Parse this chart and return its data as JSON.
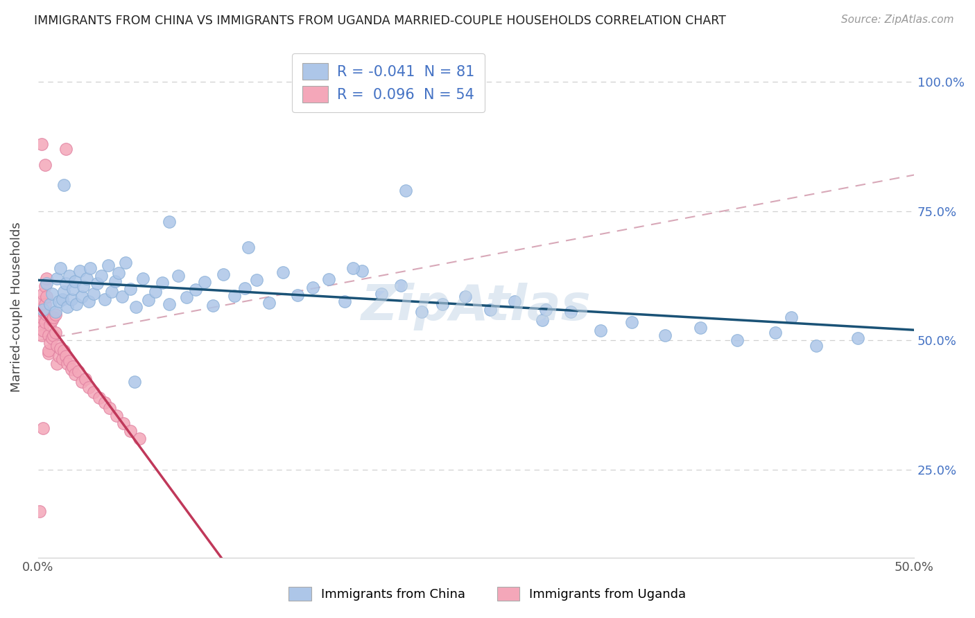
{
  "title": "IMMIGRANTS FROM CHINA VS IMMIGRANTS FROM UGANDA MARRIED-COUPLE HOUSEHOLDS CORRELATION CHART",
  "source": "Source: ZipAtlas.com",
  "ylabel": "Married-couple Households",
  "x_min": 0.0,
  "x_max": 0.5,
  "y_min": 0.08,
  "y_max": 1.05,
  "china_R": -0.041,
  "china_N": 81,
  "uganda_R": 0.096,
  "uganda_N": 54,
  "china_color": "#adc6e8",
  "china_edge_color": "#8ab0d8",
  "uganda_color": "#f4a7b9",
  "uganda_edge_color": "#e080a0",
  "china_line_color": "#1a5276",
  "uganda_line_color": "#c0385a",
  "ref_line_color": "#d8a8b8",
  "grid_color": "#d0d0d0",
  "right_axis_color": "#4472c4",
  "legend_text_color": "#222222",
  "legend_value_color": "#4472c4",
  "legend_labels": [
    "Immigrants from China",
    "Immigrants from Uganda"
  ],
  "watermark": "ZipAtlas",
  "y_ticks_right": [
    0.25,
    0.5,
    0.75,
    1.0
  ],
  "y_tick_labels_right": [
    "25.0%",
    "50.0%",
    "75.0%",
    "100.0%"
  ],
  "x_ticks": [
    0.0,
    0.1,
    0.2,
    0.3,
    0.4,
    0.5
  ],
  "x_tick_labels": [
    "0.0%",
    "",
    "",
    "",
    "",
    "50.0%"
  ],
  "china_x": [
    0.003,
    0.005,
    0.007,
    0.008,
    0.01,
    0.011,
    0.012,
    0.013,
    0.014,
    0.015,
    0.016,
    0.017,
    0.018,
    0.019,
    0.02,
    0.021,
    0.022,
    0.024,
    0.025,
    0.026,
    0.028,
    0.029,
    0.03,
    0.032,
    0.034,
    0.036,
    0.038,
    0.04,
    0.042,
    0.044,
    0.046,
    0.048,
    0.05,
    0.053,
    0.056,
    0.06,
    0.063,
    0.067,
    0.071,
    0.075,
    0.08,
    0.085,
    0.09,
    0.095,
    0.1,
    0.106,
    0.112,
    0.118,
    0.125,
    0.132,
    0.14,
    0.148,
    0.157,
    0.166,
    0.175,
    0.185,
    0.196,
    0.207,
    0.219,
    0.231,
    0.244,
    0.258,
    0.272,
    0.288,
    0.304,
    0.321,
    0.339,
    0.358,
    0.378,
    0.399,
    0.421,
    0.444,
    0.468,
    0.21,
    0.055,
    0.015,
    0.43,
    0.12,
    0.29,
    0.075,
    0.18
  ],
  "china_y": [
    0.56,
    0.61,
    0.57,
    0.59,
    0.555,
    0.62,
    0.575,
    0.64,
    0.58,
    0.595,
    0.61,
    0.565,
    0.625,
    0.58,
    0.6,
    0.615,
    0.57,
    0.635,
    0.585,
    0.605,
    0.62,
    0.575,
    0.64,
    0.59,
    0.61,
    0.625,
    0.58,
    0.645,
    0.595,
    0.615,
    0.63,
    0.585,
    0.65,
    0.6,
    0.565,
    0.62,
    0.578,
    0.595,
    0.612,
    0.57,
    0.625,
    0.583,
    0.598,
    0.613,
    0.568,
    0.628,
    0.586,
    0.601,
    0.617,
    0.573,
    0.632,
    0.588,
    0.603,
    0.619,
    0.575,
    0.634,
    0.591,
    0.606,
    0.555,
    0.57,
    0.585,
    0.56,
    0.575,
    0.54,
    0.555,
    0.52,
    0.535,
    0.51,
    0.525,
    0.5,
    0.515,
    0.49,
    0.505,
    0.79,
    0.42,
    0.8,
    0.545,
    0.68,
    0.56,
    0.73,
    0.64
  ],
  "uganda_x": [
    0.001,
    0.001,
    0.002,
    0.002,
    0.002,
    0.003,
    0.003,
    0.003,
    0.004,
    0.004,
    0.004,
    0.005,
    0.005,
    0.005,
    0.006,
    0.006,
    0.006,
    0.007,
    0.007,
    0.008,
    0.008,
    0.009,
    0.009,
    0.01,
    0.01,
    0.011,
    0.011,
    0.012,
    0.013,
    0.014,
    0.015,
    0.016,
    0.017,
    0.018,
    0.019,
    0.02,
    0.021,
    0.023,
    0.025,
    0.027,
    0.029,
    0.032,
    0.035,
    0.038,
    0.041,
    0.045,
    0.049,
    0.053,
    0.058,
    0.003,
    0.002,
    0.004,
    0.016,
    0.001
  ],
  "uganda_y": [
    0.56,
    0.53,
    0.575,
    0.545,
    0.51,
    0.59,
    0.555,
    0.52,
    0.605,
    0.57,
    0.535,
    0.62,
    0.585,
    0.55,
    0.475,
    0.51,
    0.48,
    0.53,
    0.495,
    0.54,
    0.505,
    0.545,
    0.51,
    0.55,
    0.515,
    0.49,
    0.455,
    0.47,
    0.485,
    0.465,
    0.48,
    0.47,
    0.455,
    0.46,
    0.445,
    0.45,
    0.435,
    0.44,
    0.42,
    0.425,
    0.41,
    0.4,
    0.39,
    0.38,
    0.37,
    0.355,
    0.34,
    0.325,
    0.31,
    0.33,
    0.88,
    0.84,
    0.87,
    0.17
  ]
}
